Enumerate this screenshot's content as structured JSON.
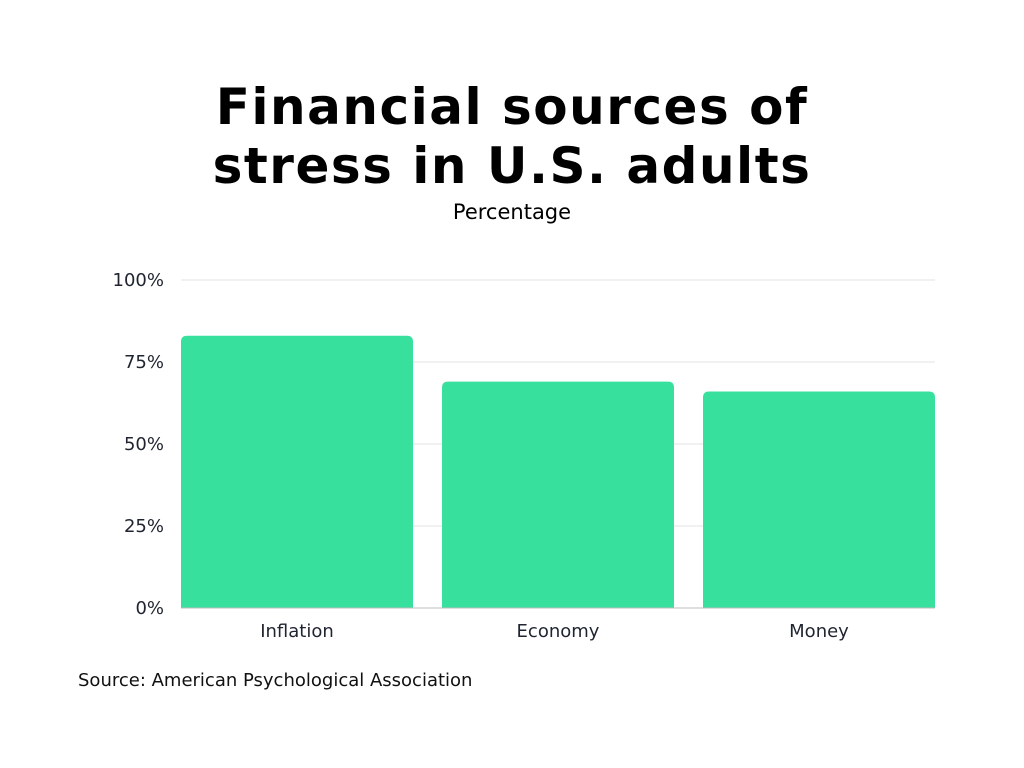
{
  "chart_data": {
    "type": "bar",
    "title_lines": [
      "Financial sources of",
      "stress in U.S. adults"
    ],
    "subtitle": "Percentage",
    "categories": [
      "Inflation",
      "Economy",
      "Money"
    ],
    "values": [
      83,
      69,
      66
    ],
    "ylim": [
      0,
      100
    ],
    "yticks": [
      0,
      25,
      50,
      75,
      100
    ],
    "ytick_labels": [
      "0%",
      "25%",
      "50%",
      "75%",
      "100%"
    ],
    "xlabel": "",
    "ylabel": "",
    "grid": true,
    "legend": "none",
    "bar_color": "#38e09d",
    "grid_color": "#e3e3e3",
    "axis_color": "#bdbdbd"
  },
  "source": "Source: American Psychological Association"
}
